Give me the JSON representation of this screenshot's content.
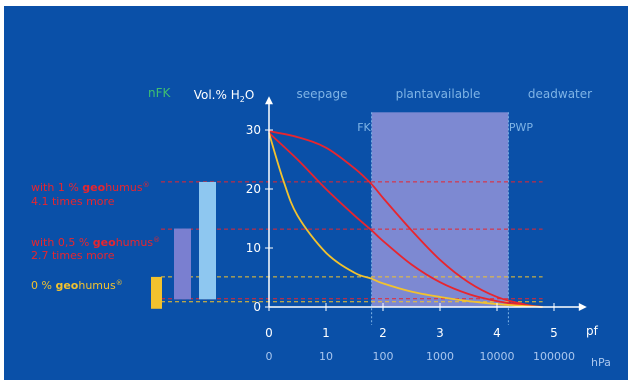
{
  "chart_data": {
    "type": "line",
    "y_axis_label_parts": [
      "Vol.% H",
      "2",
      "O"
    ],
    "x_axis_unit": "pf",
    "x_secondary_unit": "hPa",
    "y_ticks": [
      "0",
      "10",
      "20",
      "30"
    ],
    "x_ticks": [
      "0",
      "1",
      "2",
      "3",
      "4",
      "5"
    ],
    "x_secondary_ticks": [
      "0",
      "10",
      "100",
      "1000",
      "10000",
      "100000"
    ],
    "ylim": [
      0,
      33
    ],
    "xlim": [
      0,
      5.4
    ],
    "zone_labels": {
      "seepage": "seepage",
      "plantavailable": "plantavailable",
      "deadwater": "deadwater"
    },
    "zone_range_pf": [
      1.8,
      4.2
    ],
    "markers": {
      "fk": "FK",
      "pwp": "PWP"
    },
    "nfk_label": "nFK",
    "series": [
      {
        "key": "1pct",
        "values": [
          [
            0,
            29.8
          ],
          [
            0.5,
            28.8
          ],
          [
            1,
            27
          ],
          [
            1.5,
            23.5
          ],
          [
            1.8,
            20.8
          ],
          [
            2,
            18.5
          ],
          [
            2.5,
            13
          ],
          [
            3,
            8
          ],
          [
            3.5,
            4.2
          ],
          [
            4,
            1.7
          ],
          [
            4.5,
            0.4
          ],
          [
            4.8,
            0
          ]
        ]
      },
      {
        "key": "05pct",
        "values": [
          [
            0,
            29.5
          ],
          [
            0.5,
            25
          ],
          [
            1,
            20
          ],
          [
            1.5,
            15.5
          ],
          [
            1.8,
            13
          ],
          [
            2,
            11.2
          ],
          [
            2.5,
            7.2
          ],
          [
            3,
            4.2
          ],
          [
            3.5,
            2.2
          ],
          [
            4,
            1
          ],
          [
            4.5,
            0.25
          ],
          [
            4.8,
            0
          ]
        ]
      },
      {
        "key": "0pct",
        "values": [
          [
            0,
            29.5
          ],
          [
            0.25,
            21.5
          ],
          [
            0.5,
            15.5
          ],
          [
            1,
            9.2
          ],
          [
            1.5,
            5.8
          ],
          [
            1.8,
            4.8
          ],
          [
            2,
            4
          ],
          [
            2.5,
            2.6
          ],
          [
            3,
            1.7
          ],
          [
            3.5,
            1
          ],
          [
            4,
            0.5
          ],
          [
            4.5,
            0.15
          ],
          [
            4.8,
            0
          ]
        ]
      }
    ],
    "reference_lines": [
      {
        "key": "1pct",
        "y": 21.2,
        "color": "#e8252e"
      },
      {
        "key": "05pct",
        "y": 13.2,
        "color": "#e8252e"
      },
      {
        "key": "0pct",
        "y": 5.1,
        "color": "#f2c22e"
      },
      {
        "key": "0pct_low",
        "y": 0.9,
        "color": "#f2c22e"
      },
      {
        "key": "05pct_low",
        "y": 1.4,
        "color": "#e8252e"
      }
    ],
    "nfk_bars": [
      {
        "key": "0pct",
        "top": 5.1,
        "bottom": -0.3,
        "color": "#f2c22e"
      },
      {
        "key": "05pct",
        "top": 13.3,
        "bottom": 1.3,
        "color": "#7a7fd0"
      },
      {
        "key": "1pct",
        "top": 21.2,
        "bottom": 1.3,
        "color": "#8ec7f0"
      }
    ],
    "annotations": [
      {
        "key": "1pct",
        "line1_prefix": "with 1 % ",
        "brand_bold": "geo",
        "brand_rest": "humus",
        "reg": "®",
        "line2": "4.1 times more",
        "color": "#e8252e"
      },
      {
        "key": "05pct",
        "line1_prefix": "with 0,5 % ",
        "brand_bold": "geo",
        "brand_rest": "humus",
        "reg": "®",
        "line2": "2.7 times more",
        "color": "#e8252e"
      },
      {
        "key": "0pct",
        "line1_prefix": "0 % ",
        "brand_bold": "geo",
        "brand_rest": "humus",
        "reg": "®",
        "line2": "",
        "color": "#f2c22e"
      }
    ],
    "colors": {
      "background": "#0a50a8",
      "axis": "#ffffff",
      "red_series": "#e8252e",
      "yellow_series": "#f2c22e",
      "zone_fill": "#8a8fd6",
      "zone_label": "#7fb4e6",
      "tick_secondary": "#a9c6ee",
      "nfk": "#3fbf70"
    }
  }
}
